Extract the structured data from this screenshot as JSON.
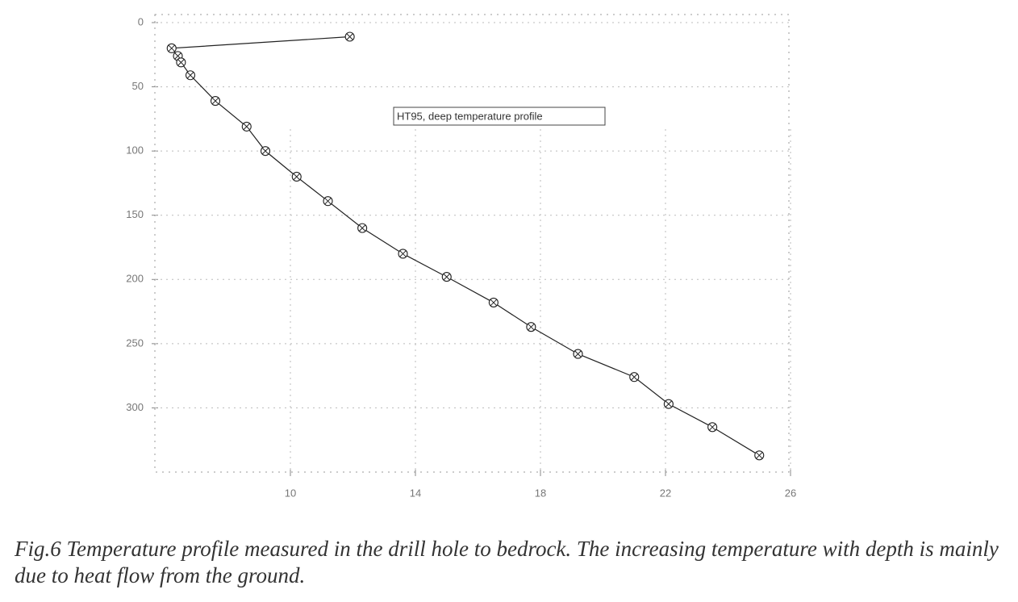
{
  "chart_data": {
    "type": "line",
    "xlim": [
      6,
      26
    ],
    "xticks": [
      10,
      14,
      18,
      22,
      26
    ],
    "ylim": [
      0,
      350
    ],
    "yticks": [
      0,
      50,
      100,
      150,
      200,
      250,
      300
    ],
    "y_inverted": true,
    "grid": true,
    "legend": "top-center",
    "series": [
      {
        "name": "HT95, deep temperature profile",
        "color": "#222222",
        "x": [
          11.9,
          6.2,
          6.4,
          6.5,
          6.8,
          7.6,
          8.6,
          9.2,
          10.2,
          11.2,
          12.3,
          13.6,
          15.0,
          16.5,
          17.7,
          19.2,
          21.0,
          22.1,
          23.5,
          25.0
        ],
        "values": [
          11,
          20,
          26,
          31,
          41,
          61,
          81,
          100,
          120,
          139,
          160,
          180,
          198,
          218,
          237,
          258,
          276,
          297,
          315,
          337
        ]
      }
    ],
    "caption": "Fig.6 Temperature profile measured in the drill hole to bedrock. The increasing temperature with depth is mainly due to heat flow from the ground."
  }
}
